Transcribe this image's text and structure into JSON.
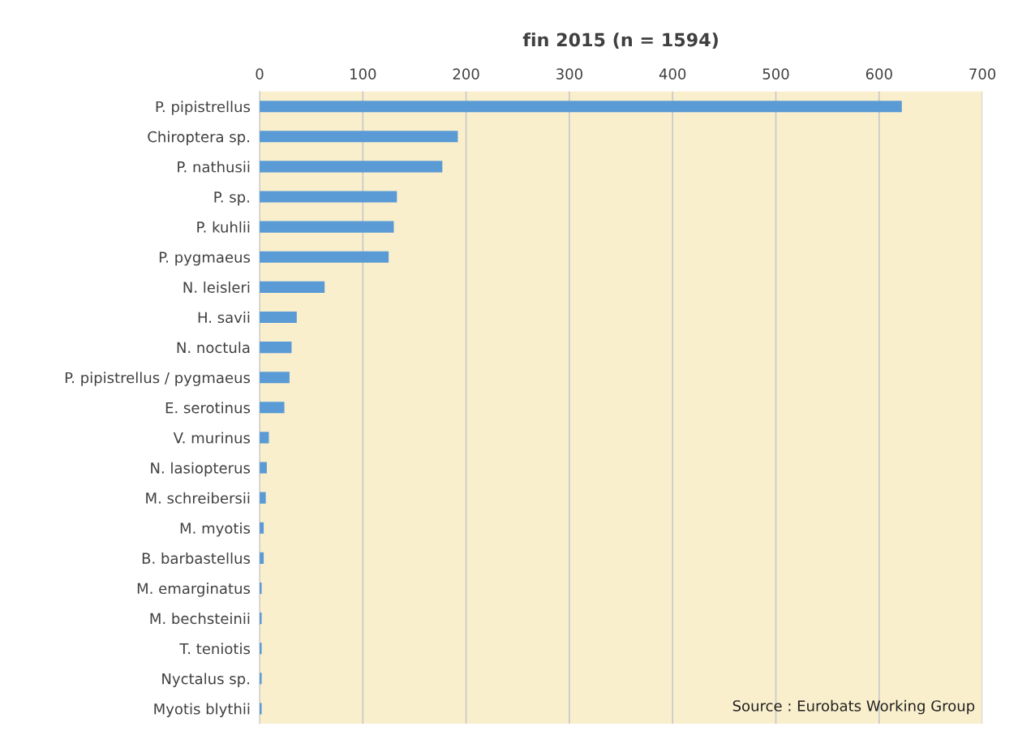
{
  "chart_data": {
    "type": "bar",
    "orientation": "horizontal",
    "title": "fin 2015 (n = 1594)",
    "categories": [
      "P. pipistrellus",
      "Chiroptera sp.",
      "P. nathusii",
      "P. sp.",
      "P. kuhlii",
      "P. pygmaeus",
      "N. leisleri",
      "H. savii",
      "N. noctula",
      "P. pipistrellus / pygmaeus",
      "E. serotinus",
      "V. murinus",
      "N. lasiopterus",
      "M. schreibersii",
      "M. myotis",
      "B. barbastellus",
      "M. emarginatus",
      "M. bechsteinii",
      "T. teniotis",
      "Nyctalus sp.",
      "Myotis blythii"
    ],
    "values": [
      622,
      192,
      177,
      133,
      130,
      125,
      63,
      36,
      31,
      29,
      24,
      9,
      7,
      6,
      4,
      4,
      2,
      2,
      2,
      2,
      2
    ],
    "color": "#5b9bd5",
    "xlim": [
      0,
      700
    ],
    "xticks": [
      0,
      100,
      200,
      300,
      400,
      500,
      600,
      700
    ],
    "grid": "x",
    "legend": false,
    "annotations": [
      "Source : Eurobats Working Group"
    ]
  }
}
